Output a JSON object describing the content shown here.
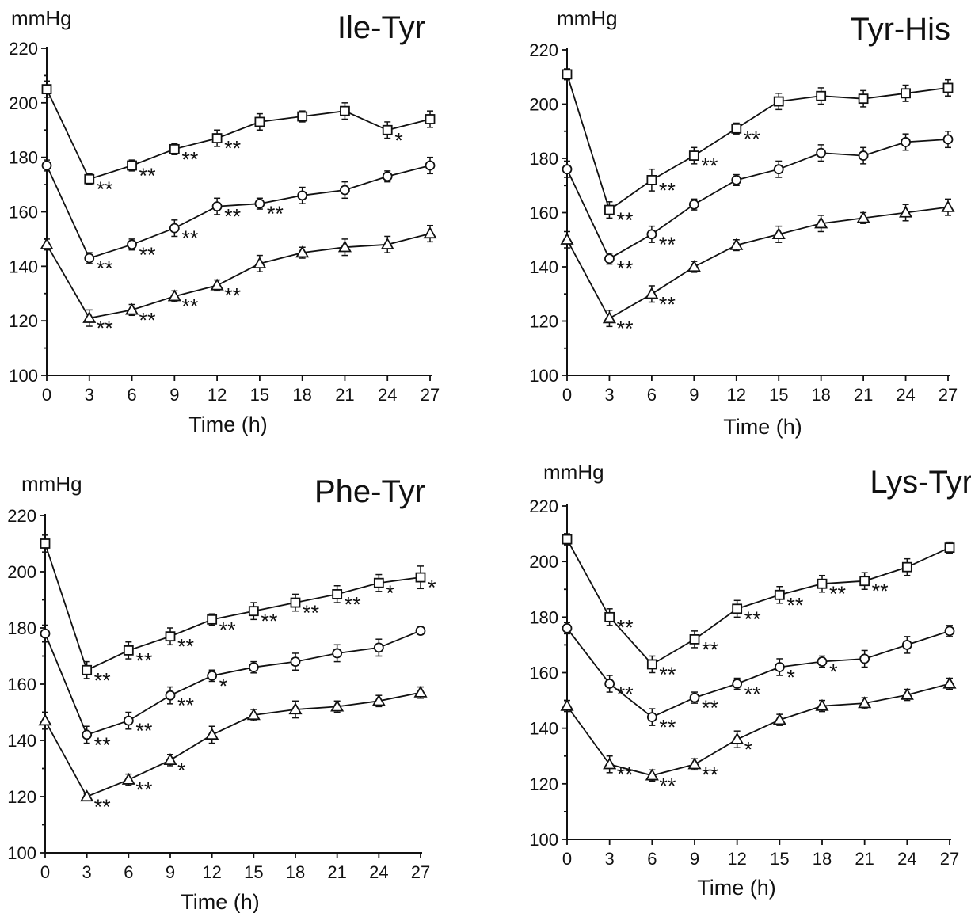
{
  "chart_data": [
    {
      "type": "line",
      "title": "Ile-Tyr",
      "ylabel": "mmHg",
      "xlabel": "Time (h)",
      "x": [
        0,
        3,
        6,
        9,
        12,
        15,
        18,
        21,
        24,
        27
      ],
      "xticks": [
        "0",
        "3",
        "6",
        "9",
        "12",
        "15",
        "18",
        "21",
        "24",
        "27"
      ],
      "yticks": [
        "100",
        "120",
        "140",
        "160",
        "180",
        "200",
        "220"
      ],
      "ylim": [
        100,
        220
      ],
      "xlim": [
        0,
        27
      ],
      "series": [
        {
          "marker": "square",
          "values": [
            205,
            172,
            177,
            183,
            187,
            193,
            195,
            197,
            190,
            194
          ],
          "errors": [
            3,
            2,
            2,
            2,
            3,
            3,
            2,
            3,
            3,
            3
          ],
          "sig": [
            "",
            "**",
            "**",
            "**",
            "**",
            "",
            "",
            "",
            "*",
            ""
          ]
        },
        {
          "marker": "circle",
          "values": [
            177,
            143,
            148,
            154,
            162,
            163,
            166,
            168,
            173,
            177
          ],
          "errors": [
            2,
            2,
            2,
            3,
            3,
            2,
            3,
            3,
            2,
            3
          ],
          "sig": [
            "",
            "**",
            "**",
            "**",
            "**",
            "**",
            "",
            "",
            "",
            ""
          ]
        },
        {
          "marker": "triangle",
          "values": [
            148,
            121,
            124,
            129,
            133,
            141,
            145,
            147,
            148,
            152
          ],
          "errors": [
            2,
            3,
            2,
            2,
            2,
            3,
            2,
            3,
            3,
            3
          ],
          "sig": [
            "",
            "**",
            "**",
            "**",
            "**",
            "",
            "",
            "",
            "",
            ""
          ]
        }
      ]
    },
    {
      "type": "line",
      "title": "Tyr-His",
      "ylabel": "mmHg",
      "xlabel": "Time (h)",
      "x": [
        0,
        3,
        6,
        9,
        12,
        15,
        18,
        21,
        24,
        27
      ],
      "xticks": [
        "0",
        "3",
        "6",
        "9",
        "12",
        "15",
        "18",
        "21",
        "24",
        "27"
      ],
      "yticks": [
        "100",
        "120",
        "140",
        "160",
        "180",
        "200",
        "220"
      ],
      "ylim": [
        100,
        220
      ],
      "xlim": [
        0,
        27
      ],
      "series": [
        {
          "marker": "square",
          "values": [
            211,
            161,
            172,
            181,
            191,
            201,
            203,
            202,
            204,
            206
          ],
          "errors": [
            2,
            3,
            4,
            3,
            2,
            3,
            3,
            3,
            3,
            3
          ],
          "sig": [
            "",
            "**",
            "**",
            "**",
            "**",
            "",
            "",
            "",
            "",
            ""
          ]
        },
        {
          "marker": "circle",
          "values": [
            176,
            143,
            152,
            163,
            172,
            176,
            182,
            181,
            186,
            187
          ],
          "errors": [
            3,
            2,
            3,
            2,
            2,
            3,
            3,
            3,
            3,
            3
          ],
          "sig": [
            "",
            "**",
            "**",
            "",
            "",
            "",
            "",
            "",
            "",
            ""
          ]
        },
        {
          "marker": "triangle",
          "values": [
            150,
            121,
            130,
            140,
            148,
            152,
            156,
            158,
            160,
            162
          ],
          "errors": [
            3,
            3,
            3,
            2,
            2,
            3,
            3,
            2,
            3,
            3
          ],
          "sig": [
            "",
            "**",
            "**",
            "",
            "",
            "",
            "",
            "",
            "",
            ""
          ]
        }
      ]
    },
    {
      "type": "line",
      "title": "Phe-Tyr",
      "ylabel": "mmHg",
      "xlabel": "Time (h)",
      "x": [
        0,
        3,
        6,
        9,
        12,
        15,
        18,
        21,
        24,
        27
      ],
      "xticks": [
        "0",
        "3",
        "6",
        "9",
        "12",
        "15",
        "18",
        "21",
        "24",
        "27"
      ],
      "yticks": [
        "100",
        "120",
        "140",
        "160",
        "180",
        "200",
        "220"
      ],
      "ylim": [
        100,
        220
      ],
      "xlim": [
        0,
        27
      ],
      "series": [
        {
          "marker": "square",
          "values": [
            210,
            165,
            172,
            177,
            183,
            186,
            189,
            192,
            196,
            198
          ],
          "errors": [
            3,
            3,
            3,
            3,
            2,
            3,
            3,
            3,
            3,
            4
          ],
          "sig": [
            "",
            "**",
            "**",
            "**",
            "**",
            "**",
            "**",
            "**",
            "*",
            "*"
          ]
        },
        {
          "marker": "circle",
          "values": [
            178,
            142,
            147,
            156,
            163,
            166,
            168,
            171,
            173,
            179
          ],
          "errors": [
            3,
            3,
            3,
            3,
            2,
            2,
            3,
            3,
            3,
            1
          ],
          "sig": [
            "",
            "**",
            "**",
            "**",
            "*",
            "",
            "",
            "",
            "",
            ""
          ]
        },
        {
          "marker": "triangle",
          "values": [
            147,
            120,
            126,
            133,
            142,
            149,
            151,
            152,
            154,
            157
          ],
          "errors": [
            3,
            1,
            2,
            2,
            3,
            2,
            3,
            2,
            2,
            2
          ],
          "sig": [
            "",
            "**",
            "**",
            "*",
            "",
            "",
            "",
            "",
            "",
            ""
          ]
        }
      ]
    },
    {
      "type": "line",
      "title": "Lys-Tyr",
      "ylabel": "mmHg",
      "xlabel": "Time (h)",
      "x": [
        0,
        3,
        6,
        9,
        12,
        15,
        18,
        21,
        24,
        27
      ],
      "xticks": [
        "0",
        "3",
        "6",
        "9",
        "12",
        "15",
        "18",
        "21",
        "24",
        "27"
      ],
      "yticks": [
        "100",
        "120",
        "140",
        "160",
        "180",
        "200",
        "220"
      ],
      "ylim": [
        100,
        220
      ],
      "xlim": [
        0,
        27
      ],
      "series": [
        {
          "marker": "square",
          "values": [
            208,
            180,
            163,
            172,
            183,
            188,
            192,
            193,
            198,
            205
          ],
          "errors": [
            2,
            3,
            3,
            3,
            3,
            3,
            3,
            3,
            3,
            2
          ],
          "sig": [
            "",
            "**",
            "**",
            "**",
            "**",
            "**",
            "**",
            "**",
            "",
            ""
          ]
        },
        {
          "marker": "circle",
          "values": [
            176,
            156,
            144,
            151,
            156,
            162,
            164,
            165,
            170,
            175
          ],
          "errors": [
            2,
            3,
            3,
            2,
            2,
            3,
            2,
            3,
            3,
            2
          ],
          "sig": [
            "",
            "**",
            "**",
            "**",
            "**",
            "*",
            "*",
            "",
            "",
            ""
          ]
        },
        {
          "marker": "triangle",
          "values": [
            148,
            127,
            123,
            127,
            136,
            143,
            148,
            149,
            152,
            156
          ],
          "errors": [
            2,
            3,
            2,
            2,
            3,
            2,
            2,
            2,
            2,
            2
          ],
          "sig": [
            "",
            "**",
            "**",
            "**",
            "*",
            "",
            "",
            "",
            "",
            ""
          ]
        }
      ]
    }
  ]
}
